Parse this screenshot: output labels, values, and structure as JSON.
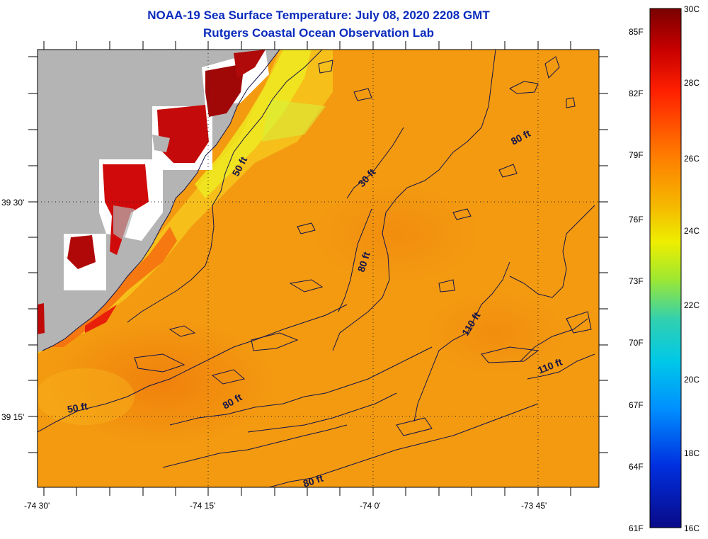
{
  "header": {
    "title_line1": "NOAA-19 Sea Surface Temperature:  July 08, 2020 2208 GMT",
    "title_line2": "Rutgers Coastal Ocean Observation Lab"
  },
  "map": {
    "lon_labels": [
      "-74 30'",
      "-74 15'",
      "-74 0'",
      "-73 45'"
    ],
    "lat_labels": [
      "39 30'",
      "39 15'"
    ],
    "contour_labels": [
      {
        "text": "50 ft"
      },
      {
        "text": "30 ft"
      },
      {
        "text": "80 ft"
      },
      {
        "text": "80 ft"
      },
      {
        "text": "110 ft"
      },
      {
        "text": "110 ft"
      },
      {
        "text": "80 ft"
      },
      {
        "text": "50 ft"
      },
      {
        "text": "80 ft"
      }
    ],
    "colors": {
      "land": "#b4b4b4",
      "ocean": "#f39a10",
      "contour": "#14144a"
    }
  },
  "colorbar": {
    "celsius": [
      "30C",
      "28C",
      "26C",
      "24C",
      "22C",
      "20C",
      "18C",
      "16C"
    ],
    "fahrenheit": [
      "85F",
      "82F",
      "79F",
      "76F",
      "73F",
      "70F",
      "67F",
      "64F",
      "61F"
    ],
    "range_c": [
      16,
      30
    ]
  }
}
